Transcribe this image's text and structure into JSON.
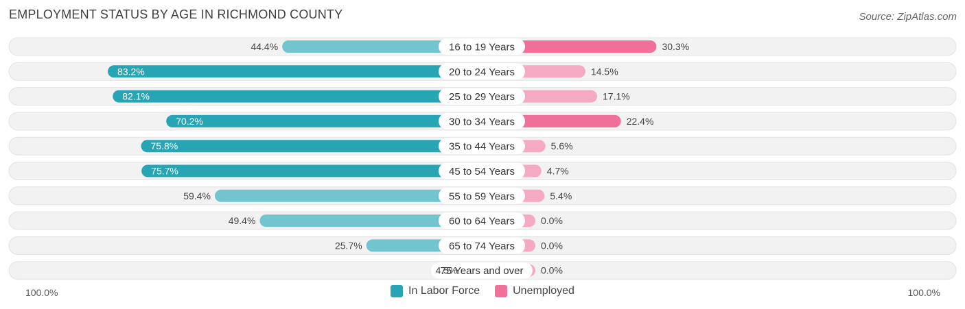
{
  "title": "EMPLOYMENT STATUS BY AGE IN RICHMOND COUNTY",
  "source": "Source: ZipAtlas.com",
  "colors": {
    "labor_strong": "#27a5b5",
    "labor_light": "#72c4cf",
    "unemp_strong": "#f0709a",
    "unemp_light": "#f6a9c2",
    "track": "#efefef"
  },
  "chart_data": {
    "type": "bar",
    "orientation": "horizontal-diverging",
    "title": "EMPLOYMENT STATUS BY AGE IN RICHMOND COUNTY",
    "categories": [
      "16 to 19 Years",
      "20 to 24 Years",
      "25 to 29 Years",
      "30 to 34 Years",
      "35 to 44 Years",
      "45 to 54 Years",
      "55 to 59 Years",
      "60 to 64 Years",
      "65 to 74 Years",
      "75 Years and over"
    ],
    "series": [
      {
        "name": "In Labor Force",
        "values": [
          44.4,
          83.2,
          82.1,
          70.2,
          75.8,
          75.7,
          59.4,
          49.4,
          25.7,
          4.5
        ],
        "labels": [
          "44.4%",
          "83.2%",
          "82.1%",
          "70.2%",
          "75.8%",
          "75.7%",
          "59.4%",
          "49.4%",
          "25.7%",
          "4.5%"
        ]
      },
      {
        "name": "Unemployed",
        "values": [
          30.3,
          14.5,
          17.1,
          22.4,
          5.6,
          4.7,
          5.4,
          0.0,
          0.0,
          0.0
        ],
        "labels": [
          "30.3%",
          "14.5%",
          "17.1%",
          "22.4%",
          "5.6%",
          "4.7%",
          "5.4%",
          "0.0%",
          "0.0%",
          "0.0%"
        ]
      }
    ],
    "xlim": [
      0,
      100
    ],
    "axis_left_label": "100.0%",
    "axis_right_label": "100.0%",
    "legend": [
      "In Labor Force",
      "Unemployed"
    ]
  }
}
